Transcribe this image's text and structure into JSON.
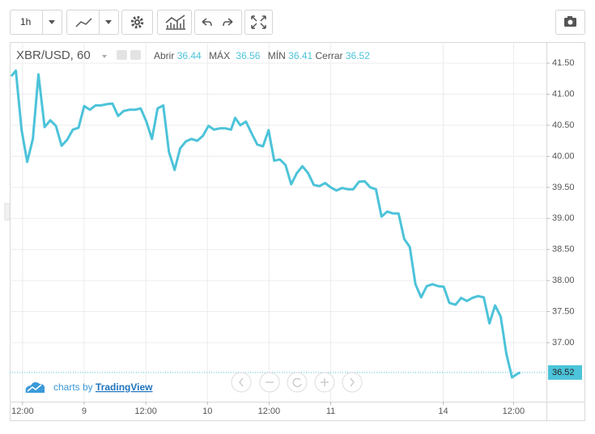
{
  "toolbar": {
    "interval": "1h"
  },
  "chart_data": {
    "type": "line",
    "title": "XBR/USD, 60",
    "ohlc": {
      "open_label": "Abrir",
      "open": 36.44,
      "high_label": "MÁX",
      "high": 36.56,
      "low_label": "MÍN",
      "low": 36.41,
      "close_label": "Cerrar",
      "close": 36.52
    },
    "color": "#4cc3d9",
    "x": [
      9.8,
      10.7,
      11.8,
      12.9,
      14.0,
      15.1,
      16.3,
      17.4,
      18.5,
      19.6,
      20.7,
      21.8,
      22.9,
      24.0,
      25.1,
      26.2,
      27.3,
      28.4,
      29.5,
      30.6,
      31.7,
      32.8,
      33.9,
      35.0,
      36.1,
      37.2,
      38.3,
      39.4,
      40.5,
      41.6,
      42.7,
      43.8,
      44.9,
      46.0,
      47.1,
      48.2,
      49.3,
      50.4,
      51.5,
      52.6,
      53.4,
      54.4,
      55.5,
      56.6,
      57.7,
      58.8,
      59.9,
      61.0,
      62.1,
      63.2,
      64.3,
      65.4,
      66.5,
      67.6,
      68.7,
      69.8,
      70.9,
      72.0,
      73.1,
      74.2,
      75.3,
      76.4,
      77.5,
      78.6,
      79.7,
      80.8,
      81.9,
      83.0,
      84.1,
      85.2,
      86.3,
      87.4,
      88.5,
      89.6,
      90.7,
      91.8,
      92.9,
      94.0,
      95.1,
      96.3,
      97.4,
      98.5,
      99.6,
      100.7,
      101.8,
      102.9,
      104.0,
      105.1,
      106.2,
      107.3,
      108.4,
      108.9
    ],
    "values": [
      41.29,
      41.38,
      40.43,
      39.91,
      40.28,
      41.32,
      40.47,
      40.58,
      40.49,
      40.17,
      40.27,
      40.43,
      40.46,
      40.81,
      40.75,
      40.82,
      40.82,
      40.84,
      40.85,
      40.65,
      40.73,
      40.75,
      40.75,
      40.77,
      40.56,
      40.28,
      40.77,
      40.82,
      40.07,
      39.78,
      40.13,
      40.24,
      40.28,
      40.25,
      40.33,
      40.49,
      40.43,
      40.45,
      40.45,
      40.43,
      40.62,
      40.5,
      40.56,
      40.37,
      40.19,
      40.16,
      40.42,
      39.93,
      39.95,
      39.86,
      39.55,
      39.73,
      39.84,
      39.73,
      39.54,
      39.52,
      39.57,
      39.5,
      39.45,
      39.49,
      39.47,
      39.47,
      39.59,
      39.6,
      39.5,
      39.47,
      39.03,
      39.11,
      39.08,
      39.08,
      38.67,
      38.54,
      37.94,
      37.73,
      37.91,
      37.94,
      37.91,
      37.9,
      37.64,
      37.61,
      37.72,
      37.67,
      37.72,
      37.75,
      37.73,
      37.31,
      37.6,
      37.42,
      36.82,
      36.44,
      36.5,
      36.52
    ],
    "last_price": 36.52,
    "xlim": [
      9.5,
      114
    ],
    "ylim": [
      36.05,
      41.84
    ],
    "xticks": [
      {
        "value": 12,
        "label": "12:00"
      },
      {
        "value": 24,
        "label": "9"
      },
      {
        "value": 36,
        "label": "12:00"
      },
      {
        "value": 48,
        "label": "10"
      },
      {
        "value": 60,
        "label": "12:00"
      },
      {
        "value": 72,
        "label": "11"
      },
      {
        "value": 93.9,
        "label": "14"
      },
      {
        "value": 107.6,
        "label": "12:00"
      }
    ],
    "yticks": [
      {
        "value": 37,
        "label": "37.00"
      },
      {
        "value": 37.5,
        "label": "37.50"
      },
      {
        "value": 38,
        "label": "38.00"
      },
      {
        "value": 38.5,
        "label": "38.50"
      },
      {
        "value": 39,
        "label": "39.00"
      },
      {
        "value": 39.5,
        "label": "39.50"
      },
      {
        "value": 40,
        "label": "40.00"
      },
      {
        "value": 40.5,
        "label": "40.50"
      },
      {
        "value": 41,
        "label": "41.00"
      },
      {
        "value": 41.5,
        "label": "41.50"
      }
    ],
    "grid": true
  },
  "branding": {
    "prefix": "charts by",
    "name": "TradingView"
  }
}
